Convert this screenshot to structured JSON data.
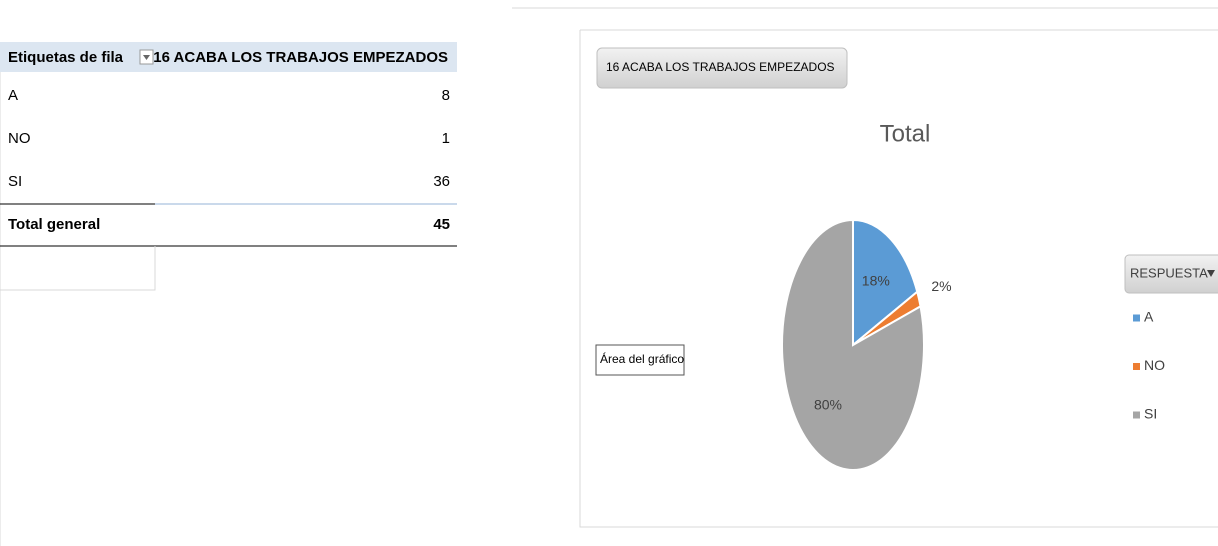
{
  "table": {
    "header": [
      "Etiquetas de fila",
      "16 ACABA LOS TRABAJOS  EMPEZADOS"
    ],
    "rows": [
      [
        "A",
        8
      ],
      [
        "NO",
        1
      ],
      [
        "SI",
        36
      ]
    ],
    "total": [
      "Total general",
      45
    ]
  },
  "chart_data": {
    "type": "pie",
    "field_button": "16 ACABA LOS TRABAJOS  EMPEZADOS",
    "title": "Total",
    "tooltip": "Área del gráfico",
    "legend_title": "RESPUESTA",
    "legend": "right",
    "categories": [
      "A",
      "NO",
      "SI"
    ],
    "values": [
      18,
      2,
      80
    ],
    "value_labels": [
      "18%",
      "2%",
      "80%"
    ],
    "colors": [
      "#5b9bd5",
      "#ed7d31",
      "#a5a5a5"
    ]
  }
}
